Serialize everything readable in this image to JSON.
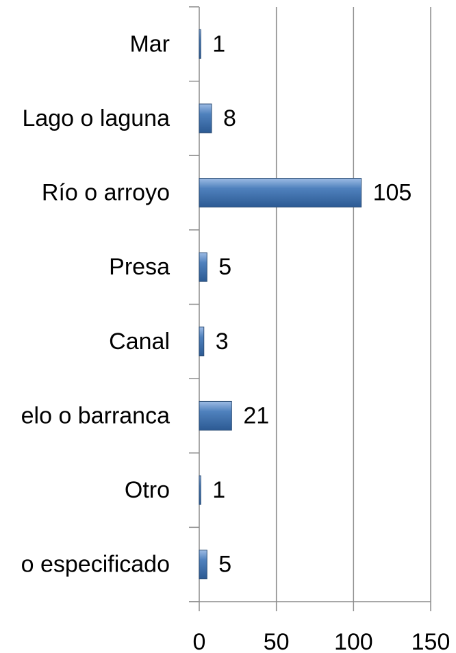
{
  "chart_data": {
    "type": "barh",
    "categories": [
      "Mar",
      "Lago o laguna",
      "Río o arroyo",
      "Presa",
      "Canal",
      "elo o barranca",
      "Otro",
      "o especificado"
    ],
    "values": [
      1,
      8,
      105,
      5,
      3,
      21,
      1,
      5
    ],
    "color": "#4f81bd",
    "xlim": [
      0,
      150
    ],
    "xticks": [
      0,
      50,
      100,
      150
    ],
    "grid": true
  }
}
